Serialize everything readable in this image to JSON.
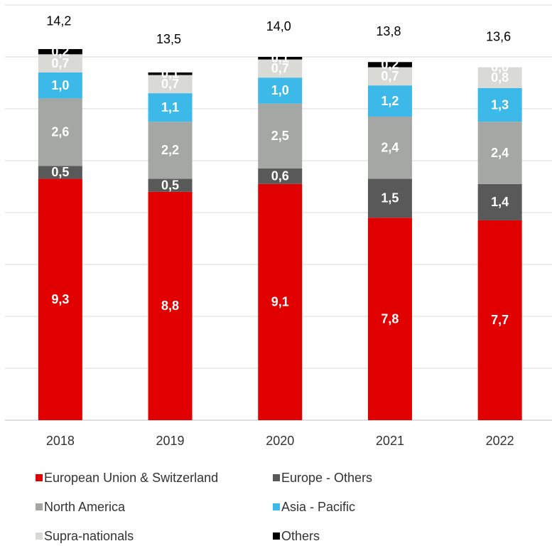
{
  "chart_data": {
    "type": "stacked_bar",
    "categories": [
      "2018",
      "2019",
      "2020",
      "2021",
      "2022"
    ],
    "series": [
      {
        "name": "European Union & Switzerland",
        "color": "#e00000",
        "values": [
          9.3,
          8.8,
          9.1,
          7.8,
          7.7
        ],
        "value_labels": [
          "9,3",
          "8,8",
          "9,1",
          "7,8",
          "7,7"
        ]
      },
      {
        "name": "Europe - Others",
        "color": "#595959",
        "values": [
          0.5,
          0.5,
          0.6,
          1.5,
          1.4
        ],
        "value_labels": [
          "0,5",
          "0,5",
          "0,6",
          "1,5",
          "1,4"
        ]
      },
      {
        "name": "North America",
        "color": "#a5a7a4",
        "values": [
          2.6,
          2.2,
          2.5,
          2.4,
          2.4
        ],
        "value_labels": [
          "2,6",
          "2,2",
          "2,5",
          "2,4",
          "2,4"
        ]
      },
      {
        "name": "Asia - Pacific",
        "color": "#3cb9e8",
        "values": [
          1.0,
          1.1,
          1.0,
          1.2,
          1.3
        ],
        "value_labels": [
          "1,0",
          "1,1",
          "1,0",
          "1,2",
          "1,3"
        ]
      },
      {
        "name": "Supra-nationals",
        "color": "#d9d9d6",
        "values": [
          0.7,
          0.7,
          0.7,
          0.7,
          0.8
        ],
        "value_labels": [
          "0,7",
          "0,7",
          "0,7",
          "0,7",
          "0,8"
        ]
      },
      {
        "name": "Others",
        "color": "#000000",
        "values": [
          0.2,
          0.1,
          0.1,
          0.2,
          0.0
        ],
        "value_labels": [
          "0,2",
          "0,1",
          "0,1",
          "0,2",
          "0,0"
        ]
      }
    ],
    "totals": [
      14.2,
      13.5,
      14.0,
      13.8,
      13.6
    ],
    "total_labels": [
      "14,2",
      "13,5",
      "14,0",
      "13,8",
      "13,6"
    ],
    "ylim": [
      0,
      16
    ],
    "yticks": [
      0,
      2,
      4,
      6,
      8,
      10,
      12,
      14,
      16
    ],
    "grid": true
  }
}
